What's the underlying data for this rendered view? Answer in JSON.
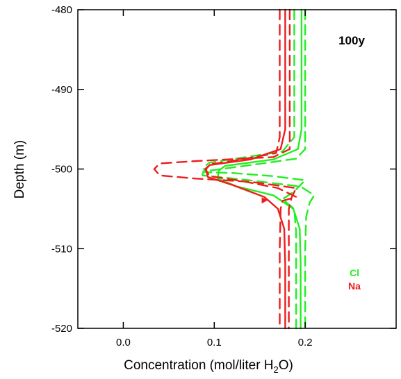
{
  "chart_data": {
    "type": "line",
    "title": "",
    "annotation": "100y",
    "xlabel": "Concentration (mol/liter H",
    "xlabel_sub": "2",
    "xlabel_tail": "O)",
    "ylabel": "Depth (m)",
    "xlim": [
      -0.05,
      0.3
    ],
    "ylim": [
      -520,
      -480
    ],
    "xticks": [
      0.0,
      0.1,
      0.2
    ],
    "xtick_labels": [
      "0.0",
      "0.1",
      "0.2"
    ],
    "yticks": [
      -480,
      -490,
      -500,
      -510,
      -520
    ],
    "ytick_labels": [
      "-480",
      "-490",
      "-500",
      "-510",
      "-520"
    ],
    "grid": false,
    "legend_position": "bottom-right",
    "legend": [
      {
        "label": "Cl",
        "color": "#22ee22"
      },
      {
        "label": "Na",
        "color": "#ee1c1c"
      }
    ],
    "series": [
      {
        "name": "Cl",
        "style": "solid",
        "color": "#22ee22",
        "points": [
          [
            0.196,
            -480
          ],
          [
            0.196,
            -495
          ],
          [
            0.192,
            -497.5
          ],
          [
            0.165,
            -498.8
          ],
          [
            0.112,
            -499.6
          ],
          [
            0.105,
            -500.2
          ],
          [
            0.104,
            -501.2
          ],
          [
            0.125,
            -502.2
          ],
          [
            0.165,
            -503.3
          ],
          [
            0.187,
            -505
          ],
          [
            0.194,
            -507.5
          ],
          [
            0.195,
            -512
          ],
          [
            0.195,
            -520
          ]
        ]
      },
      {
        "name": "Cl",
        "style": "dashed",
        "color": "#22ee22",
        "points": [
          [
            0.2,
            -480
          ],
          [
            0.2,
            -496
          ],
          [
            0.2,
            -497.5
          ],
          [
            0.19,
            -498.7
          ],
          [
            0.14,
            -499.5
          ],
          [
            0.088,
            -500.3
          ],
          [
            0.087,
            -500.8
          ],
          [
            0.13,
            -501.3
          ],
          [
            0.195,
            -502.2
          ],
          [
            0.21,
            -503.3
          ],
          [
            0.205,
            -504.2
          ],
          [
            0.201,
            -506
          ],
          [
            0.2,
            -510
          ],
          [
            0.2,
            -520
          ]
        ]
      },
      {
        "name": "Cl",
        "style": "dashed",
        "color": "#22ee22",
        "points": [
          [
            0.188,
            -480
          ],
          [
            0.188,
            -496
          ],
          [
            0.175,
            -497.8
          ],
          [
            0.135,
            -498.5
          ],
          [
            0.095,
            -499.2
          ],
          [
            0.088,
            -499.8
          ],
          [
            0.09,
            -500.4
          ],
          [
            0.12,
            -500.5
          ],
          [
            0.165,
            -500.9
          ],
          [
            0.2,
            -501.4
          ],
          [
            0.188,
            -502.8
          ],
          [
            0.175,
            -503.8
          ],
          [
            0.188,
            -505
          ],
          [
            0.19,
            -508
          ],
          [
            0.19,
            -520
          ]
        ]
      },
      {
        "name": "Na",
        "style": "solid",
        "color": "#ee1c1c",
        "points": [
          [
            0.178,
            -480
          ],
          [
            0.178,
            -495
          ],
          [
            0.173,
            -497.5
          ],
          [
            0.14,
            -498.8
          ],
          [
            0.095,
            -499.5
          ],
          [
            0.091,
            -500
          ],
          [
            0.093,
            -501
          ],
          [
            0.12,
            -502
          ],
          [
            0.155,
            -503.5
          ],
          [
            0.17,
            -505
          ],
          [
            0.177,
            -507.5
          ],
          [
            0.178,
            -512
          ],
          [
            0.178,
            -520
          ]
        ]
      },
      {
        "name": "Na",
        "style": "dashed",
        "color": "#ee1c1c",
        "points": [
          [
            0.183,
            -480
          ],
          [
            0.183,
            -496
          ],
          [
            0.183,
            -497.5
          ],
          [
            0.165,
            -498.5
          ],
          [
            0.08,
            -499
          ],
          [
            0.04,
            -499.3
          ],
          [
            0.034,
            -500
          ],
          [
            0.04,
            -500.8
          ],
          [
            0.08,
            -501.2
          ],
          [
            0.14,
            -501.6
          ],
          [
            0.19,
            -502.4
          ],
          [
            0.185,
            -503.6
          ],
          [
            0.182,
            -505
          ],
          [
            0.182,
            -508
          ],
          [
            0.182,
            -520
          ]
        ]
      },
      {
        "name": "Na",
        "style": "dashed",
        "color": "#ee1c1c",
        "points": [
          [
            0.172,
            -480
          ],
          [
            0.172,
            -496
          ],
          [
            0.168,
            -498
          ],
          [
            0.13,
            -498.8
          ],
          [
            0.096,
            -499.4
          ],
          [
            0.09,
            -500
          ],
          [
            0.095,
            -500.9
          ],
          [
            0.13,
            -501.5
          ],
          [
            0.17,
            -502.4
          ],
          [
            0.19,
            -503.5
          ],
          [
            0.175,
            -504
          ],
          [
            0.173,
            -505
          ],
          [
            0.172,
            -510
          ],
          [
            0.172,
            -520
          ]
        ]
      }
    ]
  }
}
